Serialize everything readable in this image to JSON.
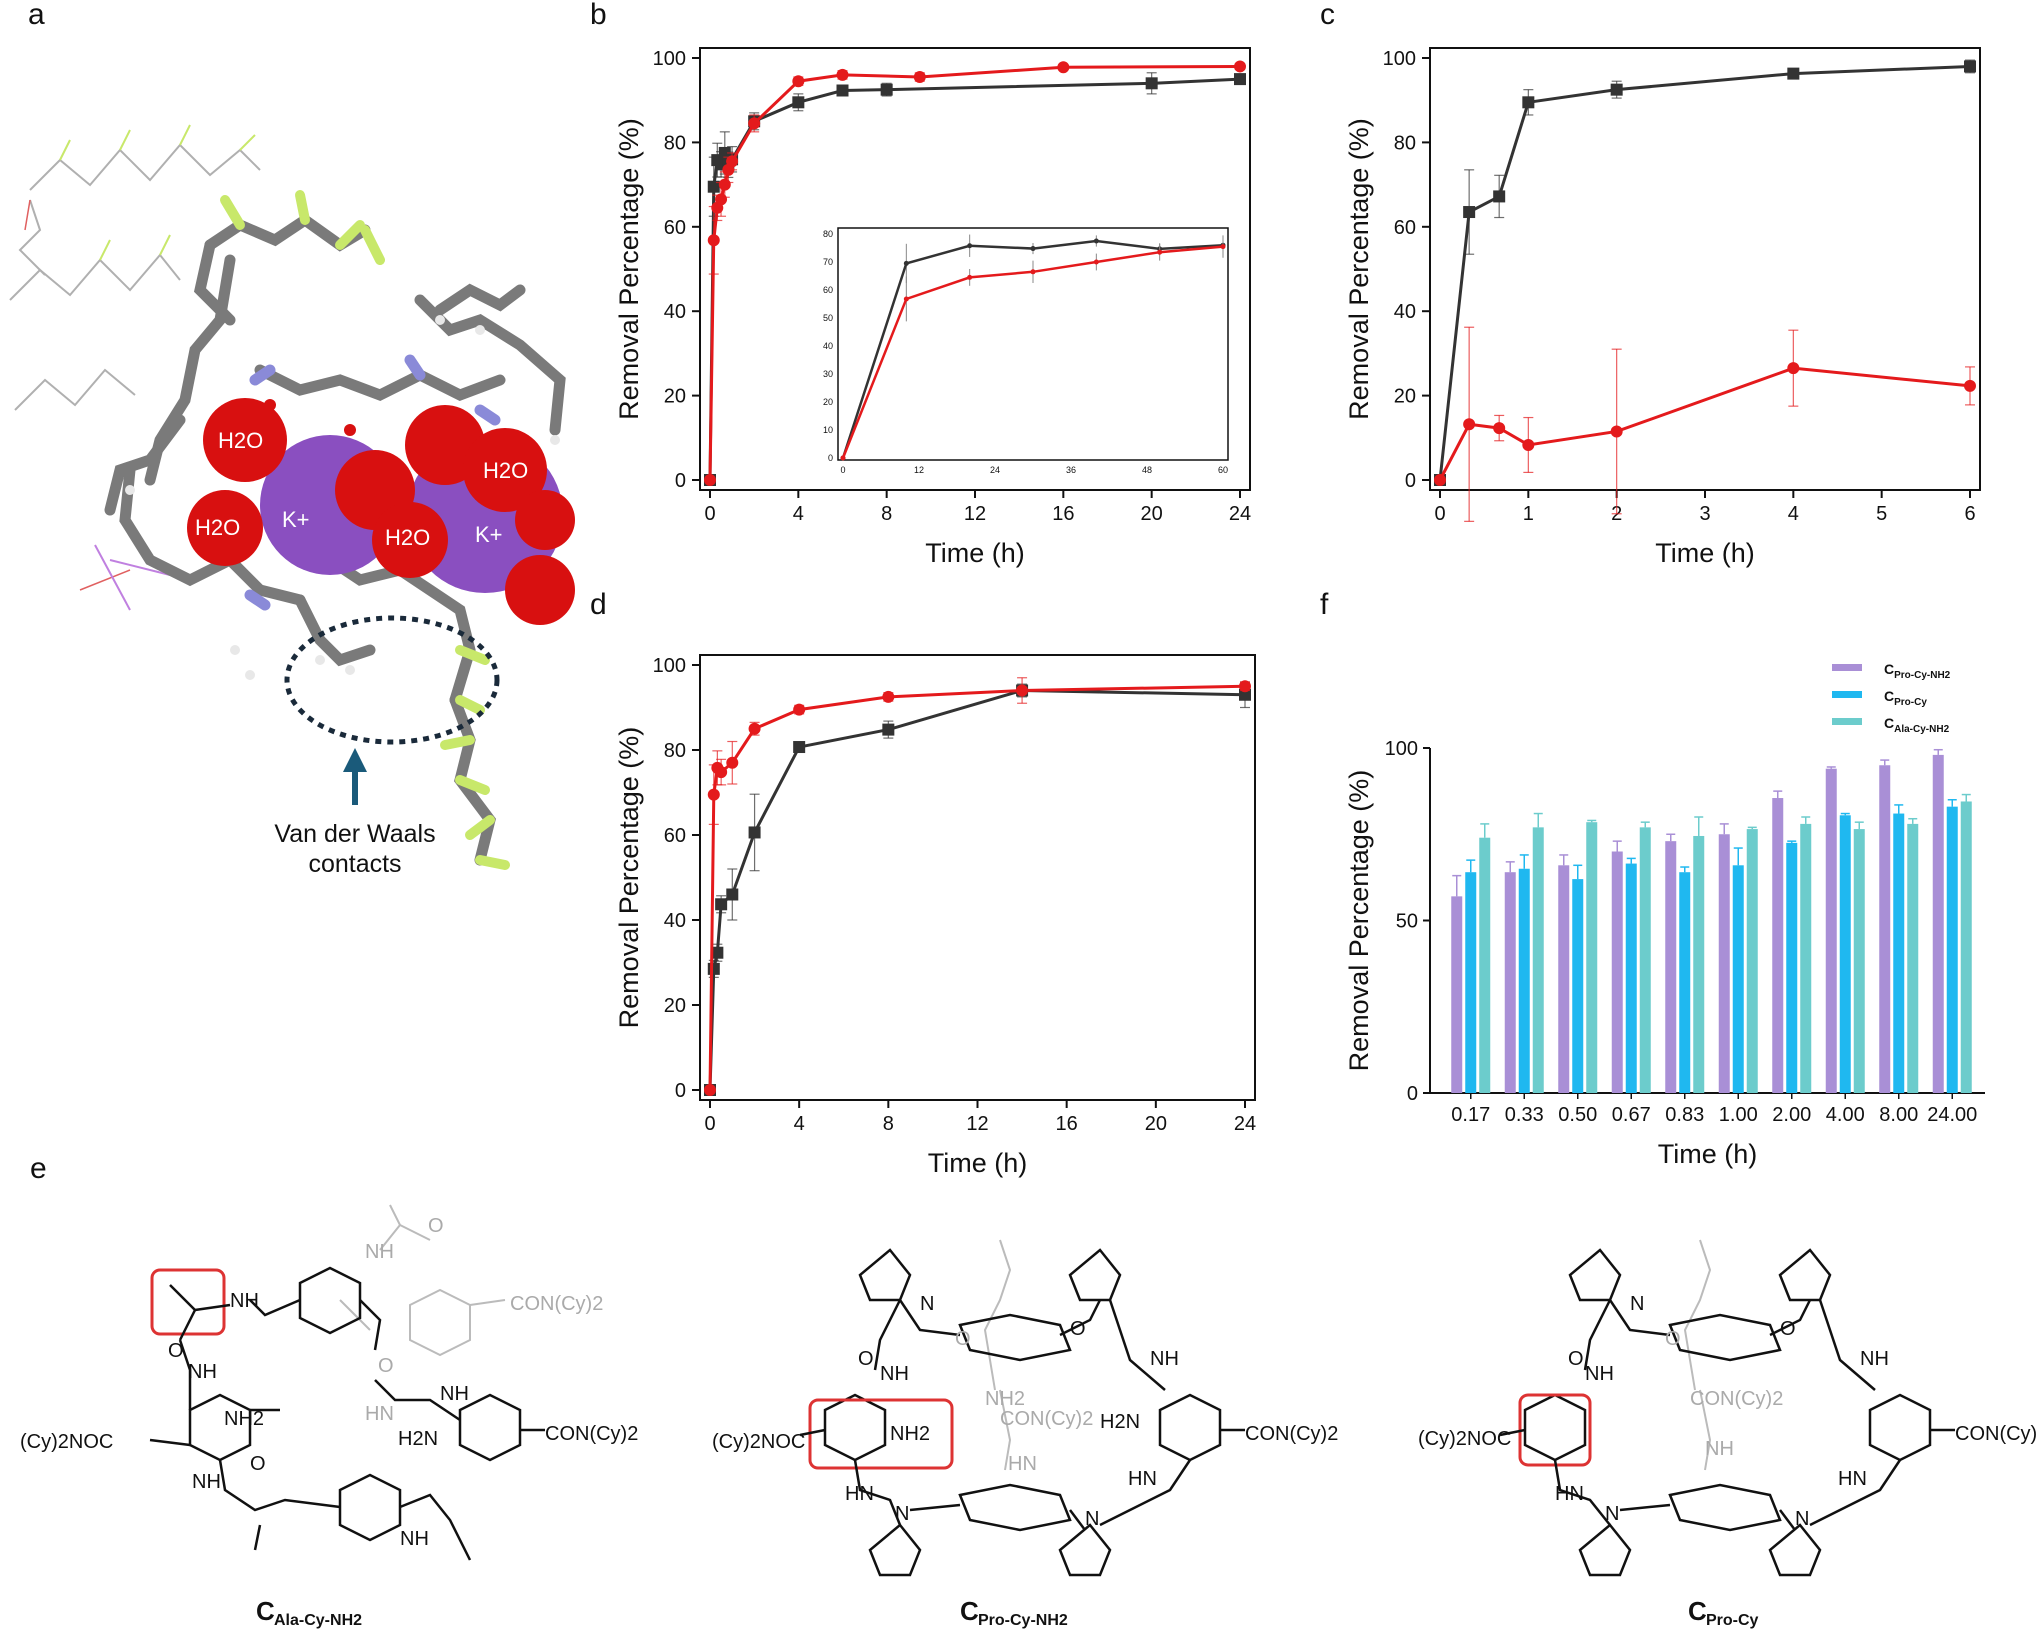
{
  "panel_labels": [
    "a",
    "b",
    "c",
    "d",
    "e",
    "f"
  ],
  "colors": {
    "black_series": "#333333",
    "red_series": "#e41a1c",
    "purple": "#a98fd6",
    "cyan": "#1fb8f0",
    "teal": "#6ccccc"
  },
  "panel_a": {
    "molecule_labels": [
      "H2O",
      "K+",
      "H2O",
      "H2O",
      "K+",
      "H2O"
    ],
    "annotation": [
      "Van der Waals",
      "contacts"
    ]
  },
  "panel_e": {
    "structures": [
      {
        "name": "C",
        "subscript": "Ala-Cy-NH2",
        "labels": [
          "NH",
          "NH2",
          "(Cy)2NOC",
          "NH",
          "NH",
          "H2N",
          "CON(Cy)2",
          "NH",
          "O",
          "O"
        ],
        "gray_labels": [
          "NH",
          "O",
          "CON(Cy)2",
          "HN",
          "O"
        ]
      },
      {
        "name": "C",
        "subscript": "Pro-Cy-NH2",
        "labels": [
          "N",
          "NH",
          "NH2",
          "(Cy)2NOC",
          "HN",
          "N",
          "NH",
          "H2N",
          "CON(Cy)2",
          "HN",
          "N",
          "O",
          "O"
        ],
        "gray_labels": [
          "NH2",
          "CON(Cy)2",
          "HN",
          "O"
        ]
      },
      {
        "name": "C",
        "subscript": "Pro-Cy",
        "labels": [
          "N",
          "NH",
          "(Cy)2NOC",
          "HN",
          "N",
          "NH",
          "CON(Cy)2",
          "HN",
          "N",
          "O",
          "O"
        ],
        "gray_labels": [
          "CON(Cy)2",
          "NH",
          "O"
        ]
      }
    ]
  },
  "chart_data": [
    {
      "panel": "b",
      "type": "line",
      "xlabel": "Time (h)",
      "ylabel": "Removal Percentage (%)",
      "xlim": [
        0,
        24
      ],
      "ylim": [
        0,
        100
      ],
      "xticks": [
        0,
        4,
        8,
        12,
        16,
        20,
        24
      ],
      "yticks": [
        0,
        20,
        40,
        60,
        80,
        100
      ],
      "series": [
        {
          "color": "#333333",
          "marker": "square",
          "x": [
            0,
            0.17,
            0.33,
            0.5,
            0.67,
            0.83,
            1,
            2,
            4,
            6,
            8,
            20,
            24
          ],
          "y": [
            0,
            69.5,
            75.8,
            74.8,
            77.5,
            74.7,
            76,
            85,
            89.5,
            92.3,
            92.5,
            94,
            95
          ],
          "err": [
            0,
            7,
            4,
            3,
            5,
            3,
            3,
            2,
            2,
            1,
            1.5,
            2.5,
            1
          ]
        },
        {
          "color": "#e41a1c",
          "marker": "circle",
          "x": [
            0,
            0.17,
            0.33,
            0.5,
            0.67,
            0.83,
            1,
            2,
            4,
            6,
            9.5,
            16,
            24
          ],
          "y": [
            0,
            56.8,
            64.5,
            66.5,
            70,
            73.5,
            75.5,
            84.5,
            94.5,
            96,
            95.5,
            97.8,
            98
          ],
          "err": [
            0,
            8,
            3,
            4,
            3,
            3,
            2,
            2,
            1,
            1,
            1,
            0.5,
            0.5
          ]
        }
      ],
      "inset": {
        "xlim": [
          0,
          60
        ],
        "ylim": [
          0,
          80
        ],
        "xticks": [
          0,
          12,
          24,
          36,
          48,
          60
        ],
        "yticks": [
          0,
          10,
          20,
          30,
          40,
          50,
          60,
          70,
          80
        ],
        "series": [
          {
            "color": "#333333",
            "x": [
              0,
              10,
              20,
              30,
              40,
              50,
              60
            ],
            "y": [
              0,
              69.5,
              75.8,
              74.8,
              77.5,
              74.7,
              76
            ],
            "err": [
              0,
              7,
              4,
              2,
              2,
              2,
              2
            ]
          },
          {
            "color": "#e41a1c",
            "x": [
              0,
              10,
              20,
              30,
              40,
              50,
              60
            ],
            "y": [
              0,
              56.8,
              64.5,
              66.5,
              70,
              73.5,
              75.5
            ],
            "err": [
              0,
              8,
              3,
              4,
              3,
              3,
              4
            ]
          }
        ]
      }
    },
    {
      "panel": "c",
      "type": "line",
      "xlabel": "Time (h)",
      "ylabel": "Removal Percentage (%)",
      "xlim": [
        0,
        6
      ],
      "ylim": [
        0,
        100
      ],
      "xticks": [
        0,
        1,
        2,
        3,
        4,
        5,
        6
      ],
      "yticks": [
        0,
        20,
        40,
        60,
        80,
        100
      ],
      "series": [
        {
          "color": "#333333",
          "marker": "square",
          "x": [
            0,
            0.33,
            0.67,
            1,
            2,
            4,
            6
          ],
          "y": [
            0,
            63.5,
            67.2,
            89.5,
            92.5,
            96.3,
            98
          ],
          "err": [
            0,
            10,
            5,
            3,
            2,
            1,
            1.5
          ]
        },
        {
          "color": "#e41a1c",
          "marker": "circle",
          "x": [
            0,
            0.33,
            0.67,
            1,
            2,
            4,
            6
          ],
          "y": [
            0,
            13.2,
            12.3,
            8.3,
            11.5,
            26.5,
            22.3
          ],
          "err": [
            0,
            23,
            3,
            6.5,
            19.5,
            9,
            4.5
          ]
        }
      ]
    },
    {
      "panel": "d",
      "type": "line",
      "xlabel": "Time (h)",
      "ylabel": "Removal Percentage (%)",
      "xlim": [
        0,
        24
      ],
      "ylim": [
        0,
        100
      ],
      "xticks": [
        0,
        4,
        8,
        12,
        16,
        20,
        24
      ],
      "yticks": [
        0,
        20,
        40,
        60,
        80,
        100
      ],
      "series": [
        {
          "color": "#333333",
          "marker": "square",
          "x": [
            0,
            0.17,
            0.33,
            0.5,
            1,
            2,
            4,
            8,
            14,
            24
          ],
          "y": [
            0,
            28.5,
            32.3,
            43.7,
            46,
            60.6,
            80.7,
            84.8,
            94,
            93
          ],
          "err": [
            0,
            2,
            2,
            2,
            6,
            9,
            1,
            2,
            1.5,
            3
          ]
        },
        {
          "color": "#e41a1c",
          "marker": "circle",
          "x": [
            0,
            0.17,
            0.33,
            0.5,
            1,
            2,
            4,
            8,
            14,
            24
          ],
          "y": [
            0,
            69.5,
            75.8,
            74.8,
            77,
            85,
            89.5,
            92.5,
            94,
            95
          ],
          "err": [
            0,
            7,
            4,
            3,
            5,
            1.5,
            1,
            1,
            3,
            1
          ]
        }
      ]
    },
    {
      "panel": "f",
      "type": "bar",
      "xlabel": "Time (h)",
      "ylabel": "Removal Percentage (%)",
      "ylim": [
        0,
        100
      ],
      "yticks": [
        0,
        50,
        100
      ],
      "categories": [
        "0.17",
        "0.33",
        "0.50",
        "0.67",
        "0.83",
        "1.00",
        "2.00",
        "4.00",
        "8.00",
        "24.00"
      ],
      "legend_position": "top-right",
      "series": [
        {
          "name": "C",
          "name_sub": "Pro-Cy-NH2",
          "color": "#a98fd6",
          "values": [
            57,
            64,
            66,
            70,
            73,
            75,
            85.5,
            94,
            95,
            98
          ],
          "err": [
            6,
            3,
            3,
            3,
            2,
            3,
            2,
            0.5,
            1.5,
            1.5
          ]
        },
        {
          "name": "C",
          "name_sub": "Pro-Cy",
          "color": "#1fb8f0",
          "values": [
            64,
            65,
            62,
            66.5,
            64,
            66,
            72.5,
            80.5,
            81,
            83
          ],
          "err": [
            3.5,
            4,
            4,
            1.5,
            1.5,
            5,
            0.5,
            0.5,
            2.5,
            2
          ]
        },
        {
          "name": "C",
          "name_sub": "Ala-Cy-NH2",
          "color": "#6ccccc",
          "values": [
            74,
            77,
            78.5,
            77,
            74.5,
            76.5,
            78,
            76.5,
            78,
            84.5
          ],
          "err": [
            4,
            4,
            0.5,
            1.5,
            5.5,
            0.5,
            2,
            2,
            1.5,
            2
          ]
        }
      ]
    }
  ]
}
